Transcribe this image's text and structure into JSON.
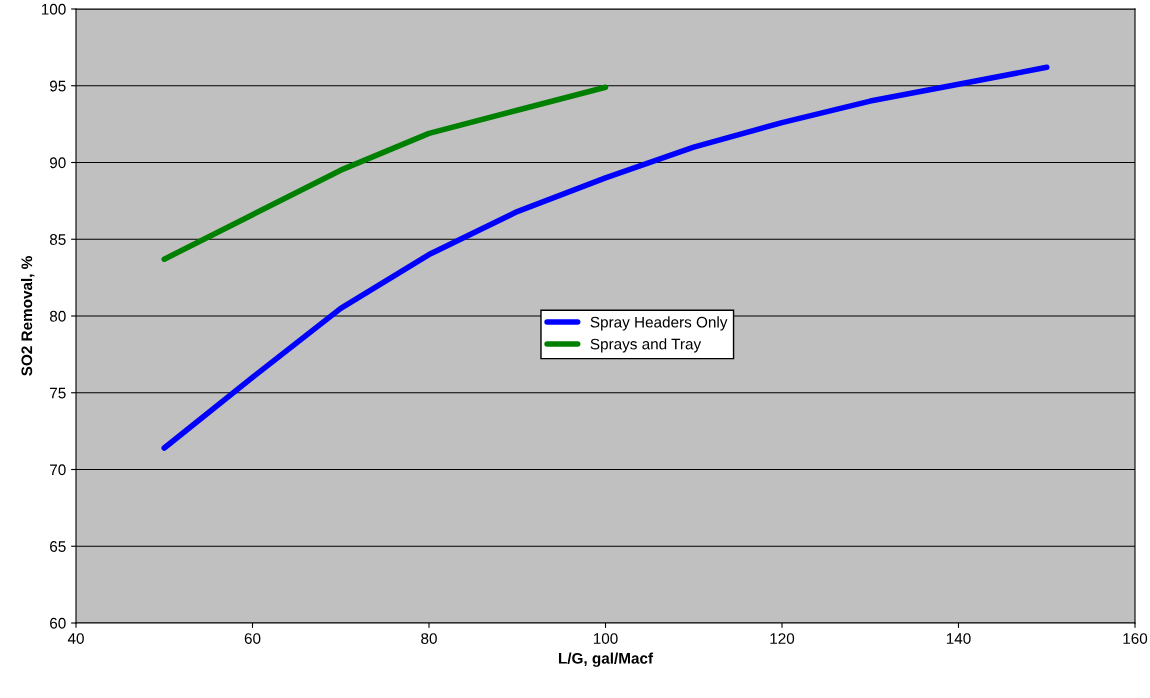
{
  "chart_data": {
    "type": "line",
    "xlabel": "L/G, gal/Macf",
    "ylabel": "SO2 Removal, %",
    "xlim": [
      40,
      160
    ],
    "xticks": [
      40,
      60,
      80,
      100,
      120,
      140,
      160
    ],
    "ylim": [
      60,
      100
    ],
    "yticks": [
      60,
      65,
      70,
      75,
      80,
      85,
      90,
      95,
      100
    ],
    "grid": "y",
    "legend": "center",
    "marker": "none",
    "line_style": "solid",
    "series": [
      {
        "name": "Spray Headers Only",
        "color": "#0000ff",
        "x": [
          50,
          60,
          70,
          80,
          90,
          100,
          110,
          120,
          130,
          140,
          150
        ],
        "values": [
          71.4,
          76.0,
          80.5,
          84.0,
          86.8,
          89.0,
          91.0,
          92.6,
          94.0,
          95.1,
          96.2
        ]
      },
      {
        "name": "Sprays and Tray",
        "color": "#008000",
        "x": [
          50,
          60,
          70,
          80,
          90,
          100
        ],
        "values": [
          83.7,
          86.6,
          89.5,
          91.9,
          93.4,
          94.9
        ]
      }
    ]
  }
}
